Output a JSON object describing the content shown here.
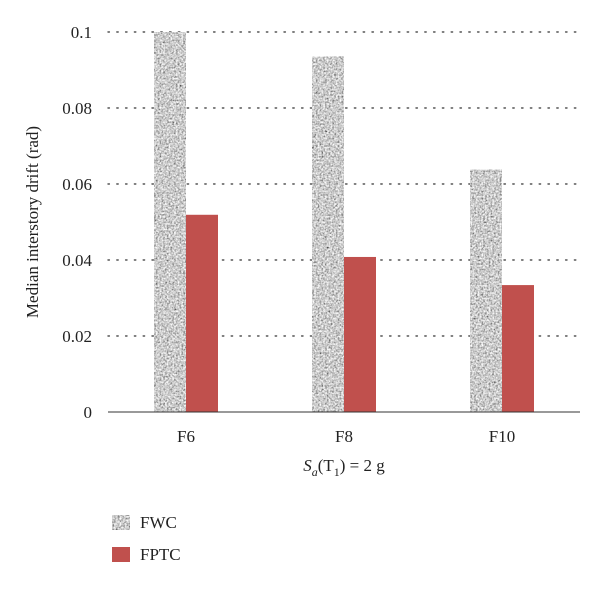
{
  "chart_data": {
    "type": "bar",
    "categories": [
      "F6",
      "F8",
      "F10"
    ],
    "series": [
      {
        "name": "FWC",
        "values": [
          0.1,
          0.0935,
          0.0637
        ],
        "color": "#9a9a9a",
        "pattern": "gray-speckle-texture"
      },
      {
        "name": "FPTC",
        "values": [
          0.0519,
          0.0408,
          0.0334
        ],
        "color": "#c0504d"
      }
    ],
    "title": "",
    "xlabel": "",
    "xlabel_parts": {
      "var": "S",
      "sub": "a",
      "open": "(T",
      "t_sub": "1",
      "rest": ") = 2 g"
    },
    "ylabel": "Median interstory drift (rad)",
    "ylim": [
      0,
      0.1
    ],
    "yticks": [
      "0",
      "0.02",
      "0.04",
      "0.06",
      "0.08",
      "0.1"
    ],
    "grid": "horizontal-dotted",
    "legend_position": "bottom-left"
  }
}
